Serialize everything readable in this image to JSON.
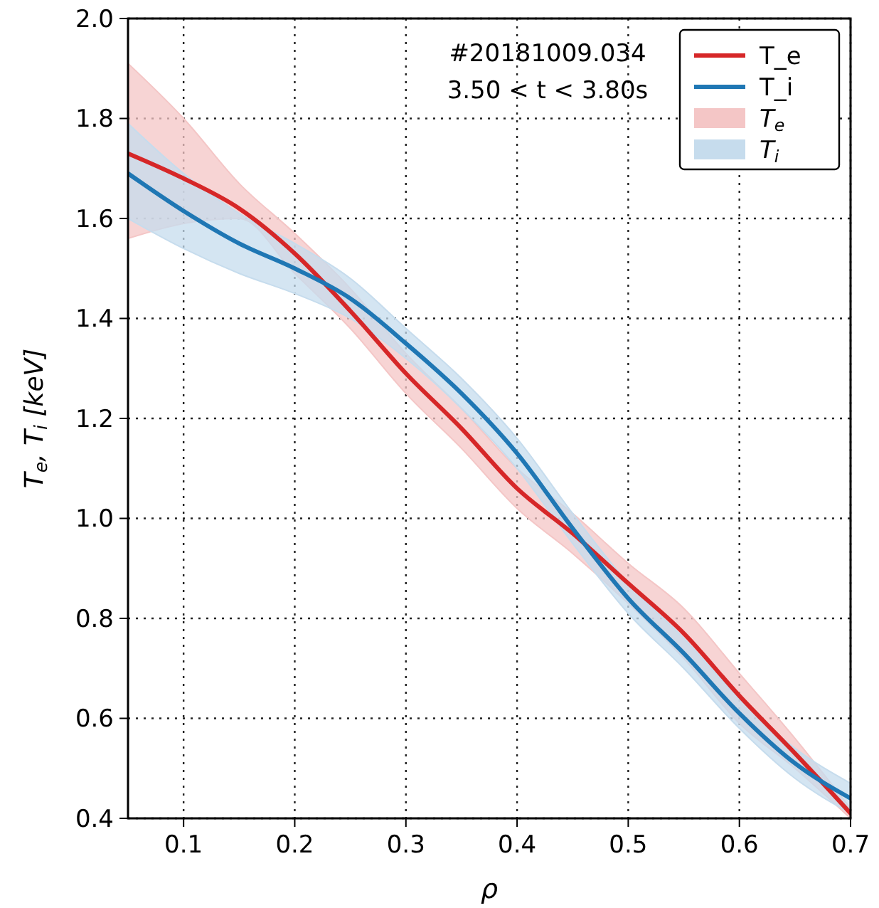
{
  "chart_data": {
    "type": "line",
    "xlabel": "ρ",
    "ylabel": "T$_{e}$, T$_{i}$ [keV]",
    "annotations": [
      "#20181009.034",
      "3.50 < t < 3.80s"
    ],
    "x": [
      0.05,
      0.1,
      0.15,
      0.2,
      0.25,
      0.3,
      0.35,
      0.4,
      0.45,
      0.5,
      0.55,
      0.6,
      0.65,
      0.7
    ],
    "series": [
      {
        "name": "T_e",
        "type": "line",
        "color": "#d62728",
        "values": [
          1.73,
          1.68,
          1.62,
          1.53,
          1.415,
          1.29,
          1.18,
          1.06,
          0.97,
          0.87,
          0.77,
          0.645,
          0.53,
          0.41
        ]
      },
      {
        "name": "T_i",
        "type": "line",
        "color": "#1f77b4",
        "values": [
          1.69,
          1.615,
          1.55,
          1.5,
          1.44,
          1.35,
          1.25,
          1.13,
          0.98,
          0.84,
          0.73,
          0.61,
          0.51,
          0.44
        ]
      },
      {
        "name": "T$_{e}$",
        "type": "area",
        "color": "#f4c6c6",
        "values": [
          null,
          null,
          null,
          null,
          null,
          null,
          null,
          null,
          null,
          null,
          null,
          null,
          null,
          null
        ],
        "lower": [
          1.56,
          1.59,
          1.6,
          1.49,
          1.38,
          1.25,
          1.14,
          1.02,
          0.93,
          0.83,
          0.72,
          0.59,
          0.5,
          0.4
        ],
        "upper": [
          1.91,
          1.8,
          1.67,
          1.57,
          1.46,
          1.33,
          1.22,
          1.1,
          1.01,
          0.91,
          0.82,
          0.69,
          0.56,
          0.42
        ]
      },
      {
        "name": "T$_{i}$",
        "type": "area",
        "color": "#c6dced",
        "values": [
          null,
          null,
          null,
          null,
          null,
          null,
          null,
          null,
          null,
          null,
          null,
          null,
          null,
          null
        ],
        "lower": [
          1.6,
          1.54,
          1.49,
          1.45,
          1.4,
          1.32,
          1.22,
          1.1,
          0.95,
          0.81,
          0.7,
          0.58,
          0.48,
          0.41
        ],
        "upper": [
          1.79,
          1.69,
          1.61,
          1.55,
          1.48,
          1.38,
          1.28,
          1.16,
          1.01,
          0.87,
          0.76,
          0.64,
          0.54,
          0.47
        ]
      }
    ],
    "xlim": [
      0.05,
      0.7
    ],
    "xticks": [
      0.1,
      0.2,
      0.3,
      0.4,
      0.5,
      0.6,
      0.7
    ],
    "ylim": [
      0.4,
      2.0
    ],
    "yticks": [
      0.4,
      0.6,
      0.8,
      {
        "value": 1.0,
        "label": "1.0"
      },
      1.2,
      1.4,
      1.6,
      1.8,
      {
        "value": 2.0,
        "label": "2.0"
      }
    ],
    "grid": true,
    "legend": "top right",
    "marker": "none",
    "line_style": "solid"
  }
}
